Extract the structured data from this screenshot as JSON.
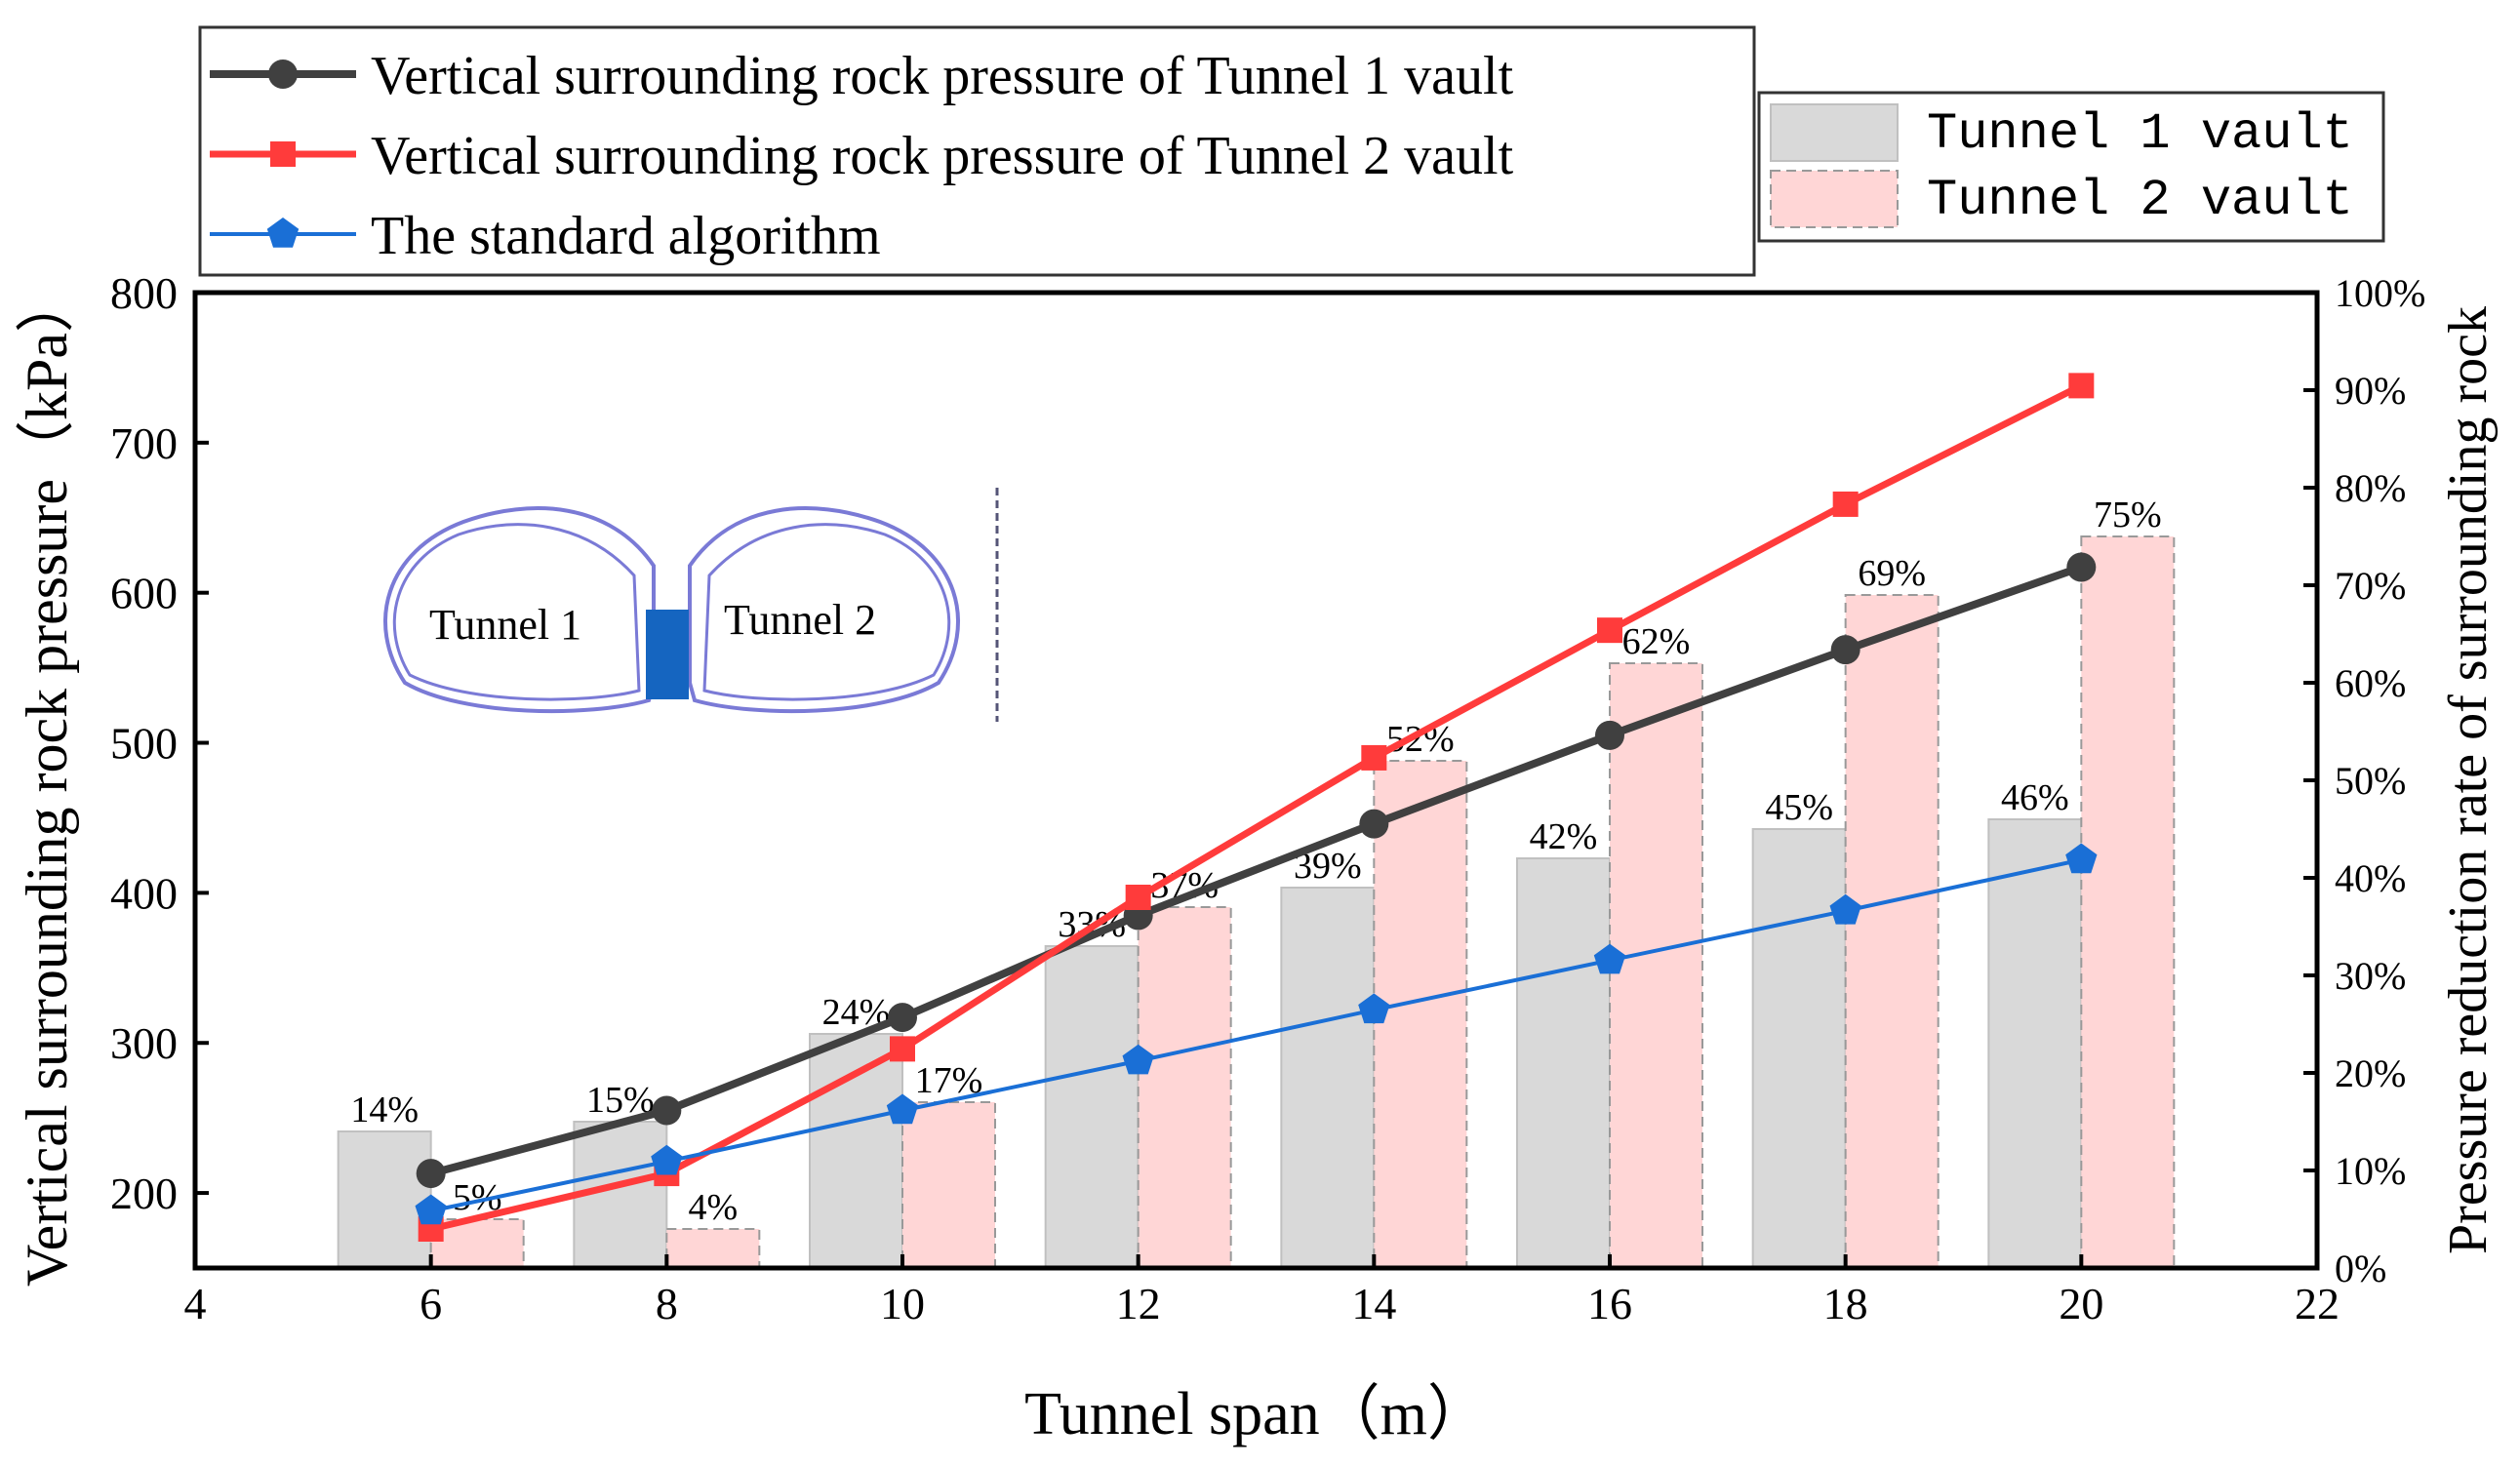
{
  "chart_data": {
    "type": "bar+line",
    "xlabel": "Tunnel span（m）",
    "ylabel_left": "Vertical surrounding rock pressure（kPa）",
    "ylabel_right": "Pressure reduction rate of surrounding rock",
    "xlim": [
      4,
      22
    ],
    "x_ticks": [
      "4",
      "6",
      "8",
      "10",
      "12",
      "14",
      "16",
      "18",
      "20",
      "22"
    ],
    "ylim_left": [
      150,
      800
    ],
    "y_ticks_left": [
      "200",
      "300",
      "400",
      "500",
      "600",
      "700",
      "800"
    ],
    "ylim_right_percent": [
      0,
      100
    ],
    "y_ticks_right": [
      "0%",
      "10%",
      "20%",
      "30%",
      "40%",
      "50%",
      "60%",
      "70%",
      "80%",
      "90%",
      "100%"
    ],
    "x": [
      6,
      8,
      10,
      12,
      14,
      16,
      18,
      20
    ],
    "line_series": [
      {
        "name": "Vertical surrounding rock pressure of Tunnel 1 vault",
        "color": "#404040",
        "marker": "circle",
        "values": [
          213,
          255,
          317,
          385,
          446,
          505,
          562,
          617
        ]
      },
      {
        "name": "Vertical surrounding rock pressure of Tunnel 2 vault",
        "color": "#ff3b3b",
        "marker": "square",
        "values": [
          176,
          213,
          296,
          397,
          490,
          575,
          659,
          738
        ]
      },
      {
        "name": "The standard algorithm",
        "color": "#1a6fd6",
        "marker": "pentagon",
        "values": [
          188,
          221,
          255,
          288,
          322,
          355,
          388,
          422
        ]
      }
    ],
    "bar_series": [
      {
        "name": "Tunnel 1 vault",
        "fill": "#d9d9d9",
        "stroke": "#c0c0c0",
        "values": [
          14,
          15,
          24,
          33,
          39,
          42,
          45,
          46
        ],
        "labels": [
          "14%",
          "15%",
          "24%",
          "33%",
          "39%",
          "42%",
          "45%",
          "46%"
        ]
      },
      {
        "name": "Tunnel 2 vault",
        "fill": "#ffd6d6",
        "stroke": "#999999",
        "values": [
          5,
          4,
          17,
          37,
          52,
          62,
          69,
          75
        ],
        "labels": [
          "5%",
          "4%",
          "17%",
          "37%",
          "52%",
          "62%",
          "69%",
          "75%"
        ]
      }
    ],
    "inset": {
      "label_left": "Tunnel 1",
      "label_right": "Tunnel 2"
    },
    "legend_lines_placement": "top-left",
    "legend_bars_placement": "top-right"
  }
}
